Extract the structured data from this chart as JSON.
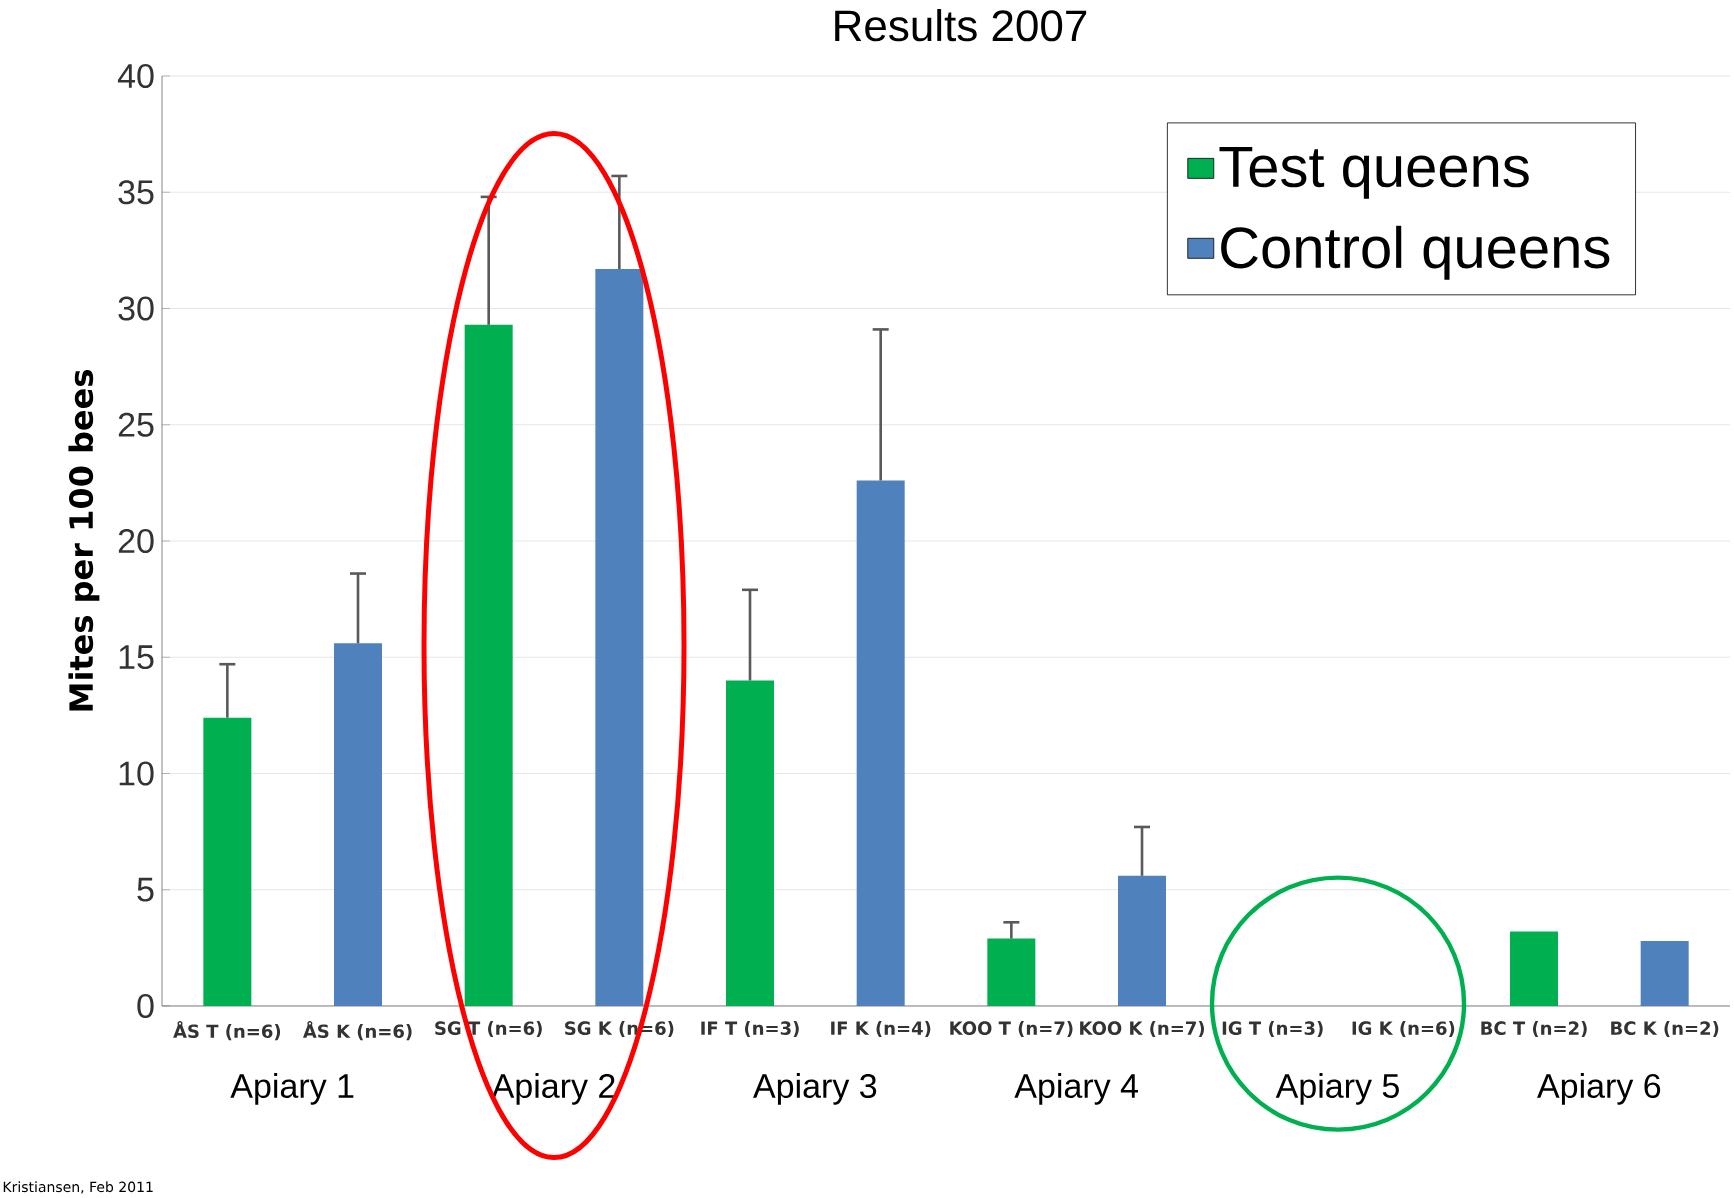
{
  "chart_data": {
    "type": "bar",
    "title": "Results 2007",
    "ylabel": "Mites per 100 bees",
    "categories": [
      "ÅS T (n=6)",
      "ÅS K (n=6)",
      "SG T (n=6)",
      "SG K (n=6)",
      "IF T (n=3)",
      "IF K (n=4)",
      "KOO T (n=7)",
      "KOO K (n=7)",
      "IG T (n=3)",
      "IG K (n=6)",
      "BC T (n=2)",
      "BC K (n=2)"
    ],
    "series": [
      {
        "name": "Test queens",
        "color": "#00b050",
        "values": [
          12.4,
          null,
          29.3,
          null,
          14.0,
          null,
          2.9,
          null,
          0,
          null,
          3.2,
          null
        ],
        "errors": [
          [
            12.4,
            14.7
          ],
          null,
          [
            29.3,
            34.8
          ],
          null,
          [
            14.0,
            17.9
          ],
          null,
          [
            2.9,
            3.6
          ],
          null,
          null,
          null,
          null,
          null
        ]
      },
      {
        "name": "Control queens",
        "color": "#4f81bd",
        "values": [
          null,
          15.6,
          null,
          31.7,
          null,
          22.6,
          null,
          5.6,
          null,
          0,
          null,
          2.8
        ],
        "errors": [
          null,
          [
            15.6,
            18.6
          ],
          null,
          [
            31.7,
            35.7
          ],
          null,
          [
            22.6,
            29.1
          ],
          null,
          [
            5.6,
            7.7
          ],
          null,
          null,
          null,
          null
        ]
      }
    ],
    "ylim": [
      0,
      40
    ],
    "yticks": [
      0,
      5,
      10,
      15,
      20,
      25,
      30,
      35,
      40
    ],
    "grid": "y",
    "legend": "top right",
    "annotations": [
      "Apiary 1",
      "Apiary 2",
      "Apiary 3",
      "Apiary 4",
      "Apiary 5",
      "Apiary 6",
      "Kristiansen, Feb 2011"
    ]
  }
}
